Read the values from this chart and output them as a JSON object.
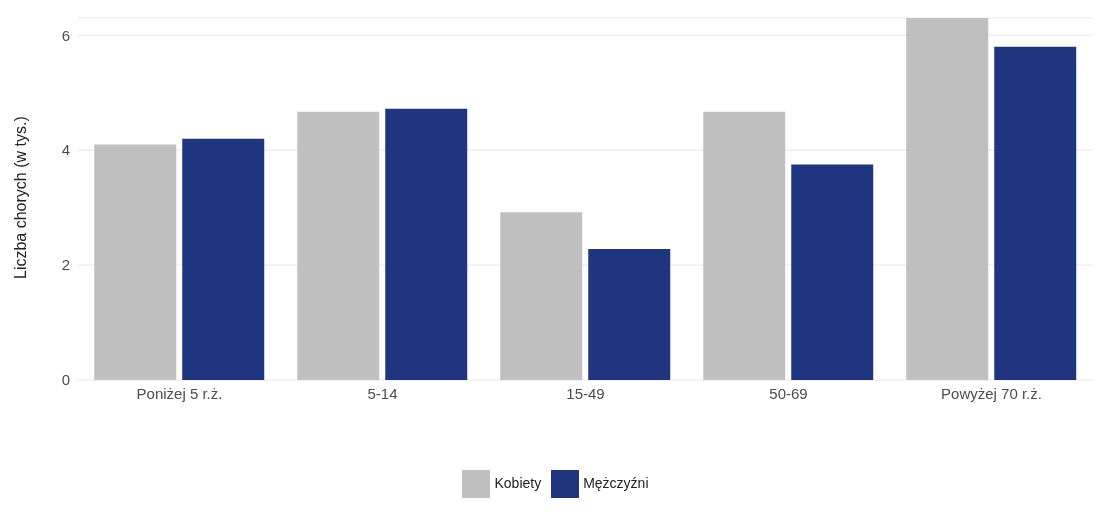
{
  "chart_data": {
    "type": "bar",
    "ylabel": "Liczba chorych (w tys.)",
    "categories": [
      "Poniżej 5 r.ż.",
      "5-14",
      "15-49",
      "50-69",
      "Powyżej 70 r.ż."
    ],
    "series": [
      {
        "name": "Kobiety",
        "color": "#c0c0c0",
        "values": [
          4.1,
          4.67,
          2.92,
          4.67,
          6.3
        ]
      },
      {
        "name": "Mężczyźni",
        "color": "#1f3580",
        "values": [
          4.2,
          4.72,
          2.28,
          3.75,
          5.8
        ]
      }
    ],
    "ylim": [
      0,
      6.3
    ],
    "yticks": [
      0,
      2,
      4,
      6
    ],
    "grid": "y",
    "legend": "bottom"
  }
}
